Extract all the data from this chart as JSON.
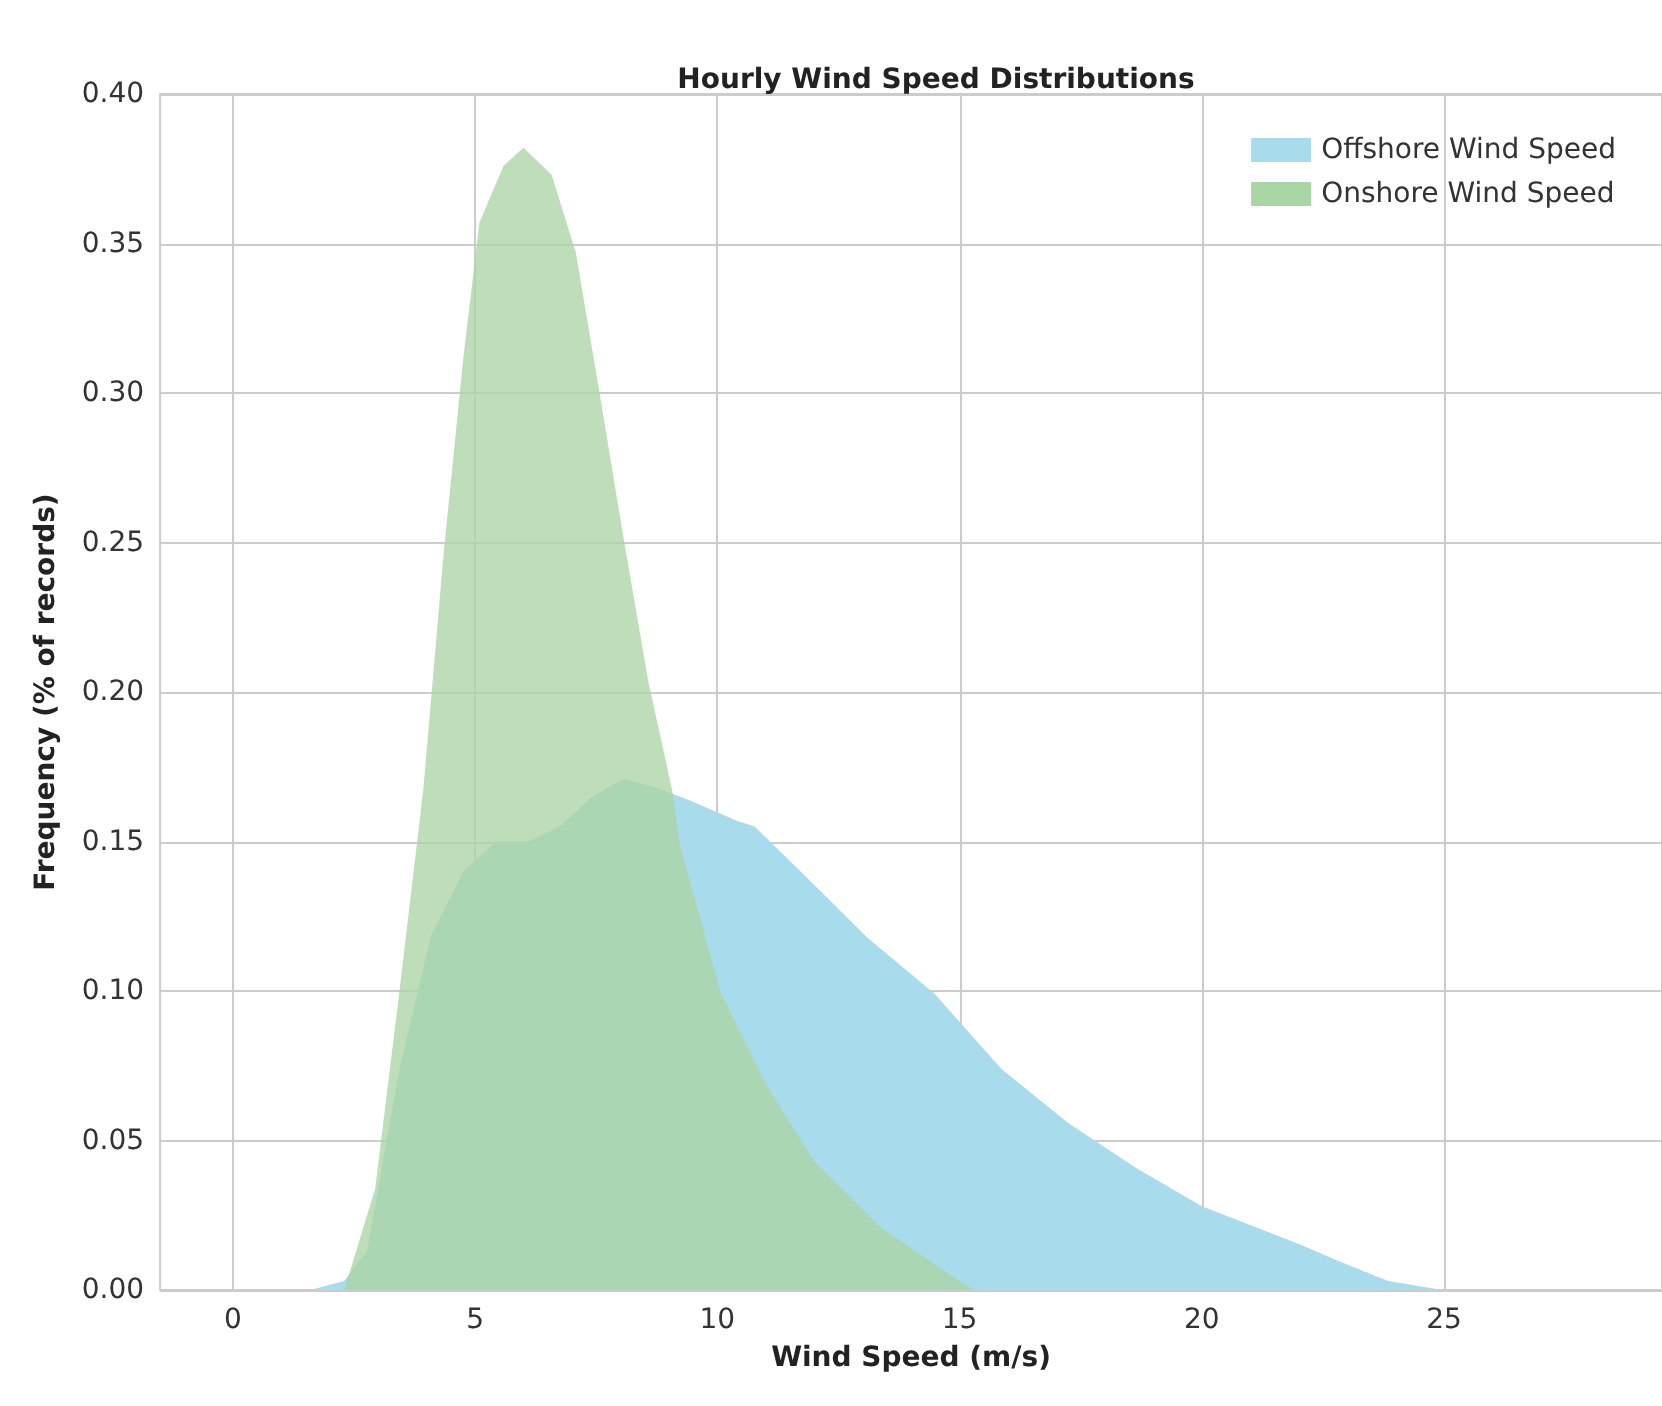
{
  "chart_data": {
    "type": "area",
    "title": "Hourly Wind Speed Distributions",
    "xlabel": "Wind Speed (m/s)",
    "ylabel": "Frequency (% of records)",
    "xlim": [
      -1.5,
      29.5
    ],
    "xticks": [
      0,
      5,
      10,
      15,
      20,
      25
    ],
    "ylim": [
      0,
      0.4
    ],
    "yticks": [
      {
        "value": 0,
        "label": "0.00"
      },
      {
        "value": 0.05,
        "label": "0.05"
      },
      {
        "value": 0.1,
        "label": "0.10"
      },
      {
        "value": 0.15,
        "label": "0.15"
      },
      {
        "value": 0.2,
        "label": "0.20"
      },
      {
        "value": 0.25,
        "label": "0.25"
      },
      {
        "value": 0.3,
        "label": "0.30"
      },
      {
        "value": 0.35,
        "label": "0.35"
      },
      {
        "value": 0.4,
        "label": "0.40"
      }
    ],
    "grid": true,
    "legend": "top right",
    "series": [
      {
        "name": "Offshore Wind Speed",
        "color": "#a8dcec",
        "x": [
          1.6,
          2.3,
          2.77,
          3.44,
          4.1,
          4.76,
          5.42,
          6.09,
          6.75,
          7.41,
          8.07,
          8.74,
          9.4,
          10.39,
          10.77,
          11.72,
          13.09,
          14.49,
          15.86,
          17.23,
          18.63,
          20.0,
          22.07,
          22.77,
          23.85,
          24.97
        ],
        "values": [
          0,
          0.003,
          0.013,
          0.074,
          0.119,
          0.14,
          0.15,
          0.15,
          0.155,
          0.165,
          0.171,
          0.168,
          0.164,
          0.157,
          0.155,
          0.14,
          0.118,
          0.099,
          0.074,
          0.056,
          0.041,
          0.028,
          0.015,
          0.01,
          0.003,
          0
        ]
      },
      {
        "name": "Onshore Wind Speed",
        "color": "#aad5a4",
        "x": [
          2.3,
          2.94,
          3.44,
          3.93,
          4.35,
          4.76,
          5.09,
          5.59,
          6.0,
          6.58,
          7.08,
          7.58,
          8.07,
          8.57,
          9.07,
          9.23,
          10.06,
          11.0,
          12.0,
          13.37,
          15.0,
          15.3
        ],
        "values": [
          0,
          0.034,
          0.1,
          0.167,
          0.246,
          0.312,
          0.357,
          0.376,
          0.382,
          0.373,
          0.347,
          0.299,
          0.251,
          0.204,
          0.167,
          0.149,
          0.1,
          0.069,
          0.043,
          0.021,
          0.003,
          0
        ]
      }
    ]
  }
}
